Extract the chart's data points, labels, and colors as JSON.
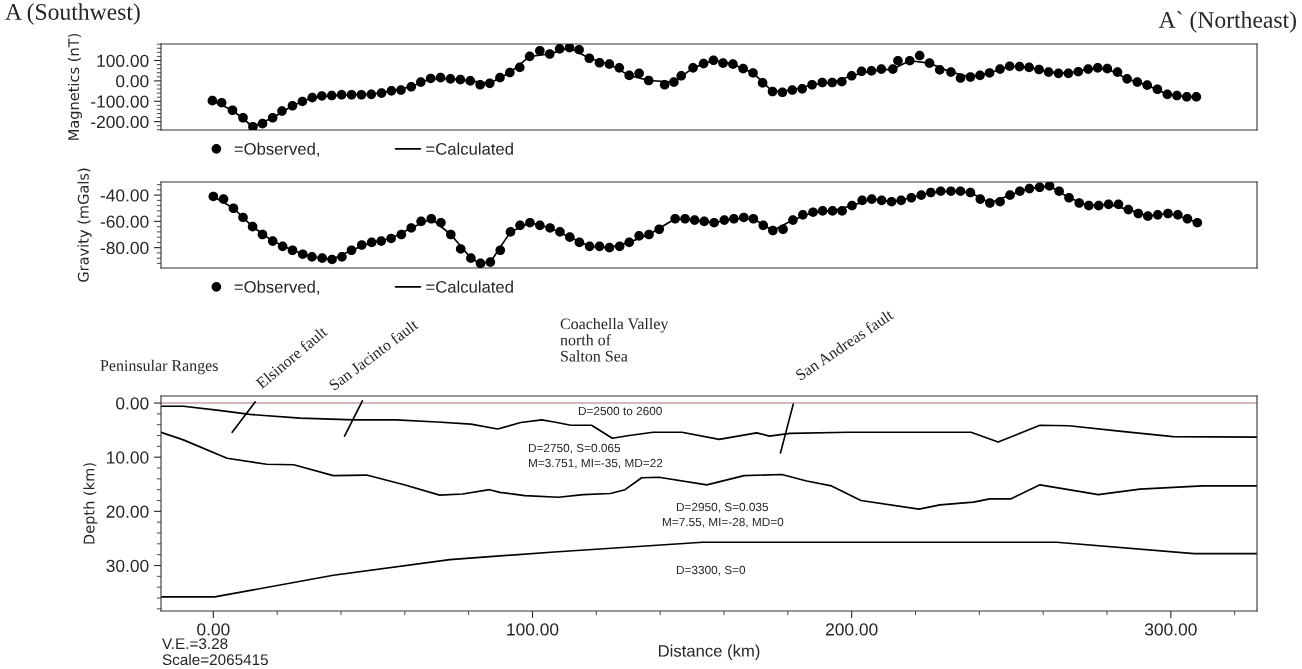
{
  "chart_data": [
    {
      "type": "scatter",
      "ylabel": "Magnetics (nT)",
      "xlim": [
        -16.4,
        327
      ],
      "ylim": [
        -241,
        181
      ],
      "yticks": [
        {
          "value": -200,
          "label": "-200.00"
        },
        {
          "value": -100,
          "label": "-100.00"
        },
        {
          "value": 0,
          "label": "0.00"
        },
        {
          "value": 100,
          "label": "100.00"
        }
      ],
      "tick_labels": "y",
      "legend": "bottom",
      "annotations": [
        "A (Southwest)",
        "A` (Northeast)"
      ],
      "series": [
        {
          "name": "=Observed,",
          "type": "scatter",
          "marker": "circle",
          "color": "#000000",
          "x": [
            -0.3,
            2.6,
            6.0,
            9.3,
            12.4,
            15.4,
            18.6,
            21.5,
            24.8,
            27.9,
            31.0,
            34.0,
            37.1,
            40.2,
            43.3,
            46.4,
            49.5,
            52.7,
            55.8,
            58.8,
            62.0,
            65.0,
            68.1,
            71.2,
            74.3,
            77.4,
            80.5,
            83.6,
            86.6,
            89.8,
            92.9,
            96.0,
            99.1,
            102.3,
            105.4,
            108.5,
            111.6,
            114.6,
            117.8,
            121.0,
            124.1,
            127.2,
            130.3,
            133.4,
            136.4,
            141.4,
            144.3,
            146.6,
            150.3,
            153.6,
            156.7,
            159.7,
            162.8,
            166.0,
            169.1,
            172.1,
            175.2,
            178.3,
            181.4,
            184.5,
            187.6,
            190.8,
            193.9,
            196.9,
            200.0,
            203.1,
            206.2,
            209.3,
            212.9,
            214.5,
            218.2,
            221.3,
            224.4,
            227.6,
            231.1,
            234.1,
            237.2,
            240.2,
            243.2,
            246.5,
            249.5,
            252.6,
            255.6,
            258.7,
            261.7,
            264.8,
            267.9,
            271.0,
            274.1,
            277.1,
            280.1,
            283.3,
            286.3,
            289.5,
            292.6,
            295.8,
            298.9,
            301.9,
            305.0,
            308.0
          ],
          "values": [
            -97,
            -107,
            -144,
            -181,
            -225,
            -210,
            -181,
            -148,
            -122,
            -101,
            -82,
            -74,
            -72,
            -68,
            -68,
            -68,
            -66,
            -60,
            -49,
            -45,
            -29,
            -6,
            12,
            16,
            10,
            6,
            0,
            -19,
            -12,
            16,
            41,
            66,
            120,
            148,
            132,
            157,
            163,
            153,
            111,
            89,
            82,
            64,
            27,
            37,
            2,
            -19,
            -6,
            25,
            64,
            85,
            101,
            87,
            82,
            60,
            39,
            -10,
            -52,
            -56,
            -45,
            -39,
            -19,
            -8,
            -8,
            -4,
            25,
            47,
            49,
            58,
            58,
            99,
            99,
            124,
            87,
            54,
            43,
            14,
            19,
            27,
            39,
            58,
            72,
            70,
            66,
            56,
            43,
            37,
            37,
            45,
            58,
            64,
            60,
            43,
            10,
            -6,
            -21,
            -41,
            -66,
            -72,
            -78,
            -78
          ]
        },
        {
          "name": "=Calculated",
          "type": "line",
          "marker": "none",
          "color": "#000000",
          "x": [
            -0.3,
            6.0,
            12.4,
            18.6,
            24.8,
            31.0,
            37.1,
            43.3,
            49.5,
            55.8,
            62.0,
            68.1,
            74.3,
            80.5,
            86.6,
            92.9,
            99.1,
            105.4,
            111.6,
            117.8,
            124.1,
            130.3,
            136.4,
            144.3,
            150.3,
            156.7,
            162.8,
            169.1,
            175.2,
            181.4,
            187.6,
            193.9,
            200.0,
            206.2,
            212.9,
            218.2,
            224.4,
            231.1,
            237.2,
            243.2,
            249.5,
            255.6,
            261.7,
            267.9,
            274.1,
            280.1,
            286.3,
            292.6,
            298.9,
            305.0,
            308.0
          ],
          "values": [
            -97,
            -144,
            -225,
            -181,
            -122,
            -82,
            -72,
            -68,
            -66,
            -49,
            -29,
            12,
            10,
            0,
            -12,
            41,
            120,
            132,
            163,
            111,
            82,
            27,
            2,
            -6,
            64,
            101,
            82,
            39,
            -52,
            -45,
            -19,
            -8,
            25,
            49,
            58,
            99,
            87,
            43,
            19,
            39,
            72,
            66,
            43,
            37,
            58,
            60,
            10,
            -21,
            -66,
            -78,
            -78
          ]
        }
      ]
    },
    {
      "type": "scatter",
      "ylabel": "Gravity (mGals)",
      "xlim": [
        -16.4,
        327
      ],
      "ylim": [
        -95.5,
        -30
      ],
      "yticks": [
        {
          "value": -80,
          "label": "-80.00"
        },
        {
          "value": -60,
          "label": "-60.00"
        },
        {
          "value": -40,
          "label": "-40.00"
        }
      ],
      "tick_labels": "y",
      "legend": "bottom",
      "series": [
        {
          "name": "=Observed,",
          "type": "scatter",
          "marker": "circle",
          "color": "#000000",
          "x": [
            0.0,
            3.2,
            6.3,
            9.3,
            12.3,
            15.4,
            18.6,
            21.7,
            24.8,
            28.0,
            30.9,
            34.1,
            37.2,
            40.3,
            43.3,
            46.5,
            49.6,
            52.6,
            55.7,
            58.9,
            62.0,
            65.1,
            68.3,
            71.3,
            74.4,
            77.5,
            80.7,
            83.7,
            86.8,
            89.9,
            93.1,
            96.1,
            99.2,
            102.3,
            105.5,
            108.6,
            111.7,
            114.7,
            117.9,
            121.0,
            124.1,
            127.3,
            130.3,
            133.4,
            136.5,
            139.7,
            144.7,
            147.8,
            150.8,
            153.8,
            156.9,
            160.1,
            163.1,
            166.2,
            169.2,
            172.3,
            175.3,
            178.5,
            181.6,
            184.7,
            187.9,
            190.9,
            194.0,
            197.0,
            200.1,
            203.3,
            206.3,
            209.4,
            212.5,
            215.5,
            218.7,
            221.8,
            224.8,
            227.9,
            231.1,
            234.1,
            237.2,
            240.3,
            243.3,
            246.5,
            249.6,
            252.7,
            255.7,
            258.9,
            262.0,
            265.0,
            268.1,
            271.3,
            274.3,
            277.4,
            280.5,
            283.6,
            286.7,
            289.8,
            292.8,
            295.9,
            299.1,
            302.2,
            305.2,
            308.3
          ],
          "values": [
            -41,
            -43,
            -50,
            -57,
            -64,
            -70,
            -75,
            -79,
            -82,
            -85,
            -87,
            -88,
            -89,
            -87,
            -82,
            -78,
            -76,
            -75,
            -73,
            -70,
            -65,
            -60,
            -58,
            -61,
            -70,
            -81,
            -88,
            -92,
            -91,
            -82,
            -68,
            -63,
            -61,
            -63,
            -65,
            -68,
            -72,
            -76,
            -79,
            -79,
            -80,
            -79,
            -76,
            -71,
            -70,
            -66,
            -58,
            -58,
            -59,
            -60,
            -61,
            -59,
            -58,
            -57,
            -58,
            -63,
            -67,
            -66,
            -59,
            -55,
            -53,
            -52,
            -52,
            -52,
            -48,
            -44,
            -43,
            -44,
            -45,
            -44,
            -42,
            -40,
            -38,
            -37,
            -37,
            -37,
            -38,
            -43,
            -46,
            -45,
            -40,
            -37,
            -35,
            -34,
            -33,
            -37,
            -42,
            -46,
            -48,
            -48,
            -47,
            -47,
            -51,
            -54,
            -56,
            -55,
            -54,
            -55,
            -58,
            -61
          ]
        },
        {
          "name": "=Calculated",
          "type": "line",
          "marker": "none",
          "color": "#000000",
          "x": [
            0.0,
            6.3,
            12.3,
            18.6,
            24.8,
            30.9,
            37.2,
            43.3,
            49.6,
            55.7,
            62.0,
            68.3,
            74.4,
            80.7,
            83.7,
            86.8,
            93.1,
            99.2,
            105.5,
            111.7,
            117.9,
            124.1,
            130.3,
            136.5,
            144.7,
            150.8,
            156.9,
            163.1,
            169.2,
            175.3,
            181.6,
            187.9,
            194.0,
            200.1,
            206.3,
            212.5,
            218.7,
            224.8,
            231.1,
            237.2,
            243.3,
            249.6,
            255.7,
            262.0,
            268.1,
            274.3,
            280.5,
            286.7,
            292.8,
            299.1,
            305.2,
            308.3
          ],
          "values": [
            -41,
            -50,
            -64,
            -75,
            -82,
            -87,
            -89,
            -82,
            -76,
            -73,
            -65,
            -58,
            -70,
            -88,
            -92,
            -91,
            -68,
            -61,
            -65,
            -72,
            -79,
            -80,
            -76,
            -70,
            -58,
            -59,
            -61,
            -58,
            -58,
            -67,
            -59,
            -53,
            -52,
            -48,
            -43,
            -45,
            -42,
            -38,
            -37,
            -38,
            -46,
            -40,
            -35,
            -33,
            -42,
            -48,
            -47,
            -51,
            -56,
            -54,
            -58,
            -61
          ]
        }
      ]
    },
    {
      "type": "line",
      "xlabel": "Distance (km)",
      "ylabel": "Depth (km)",
      "xlim": [
        -16.4,
        327
      ],
      "xticks": [
        {
          "value": 0,
          "label": "0.00"
        },
        {
          "value": 100,
          "label": "100.00"
        },
        {
          "value": 200,
          "label": "200.00"
        },
        {
          "value": 300,
          "label": "300.00"
        }
      ],
      "ylim": [
        38.4,
        -1.3
      ],
      "yticks": [
        {
          "value": 0,
          "label": "0.00"
        },
        {
          "value": 10,
          "label": "10.00"
        },
        {
          "value": 20,
          "label": "20.00"
        },
        {
          "value": 30,
          "label": "30.00"
        }
      ],
      "ref_lines": [
        {
          "axis": "y",
          "value": 0,
          "color": "#c8a0a0"
        }
      ],
      "annotations": [
        "Peninsular Ranges",
        "Elsinore fault",
        "San Jacinto fault",
        "Coachella Valley\nnorth of\nSalton Sea",
        "San Andreas fault",
        "D=2500 to 2600",
        "D=2750, S=0.065",
        "M=3.751, MI=-35, MD=22",
        "D=2950, S=0.035",
        "M=7.55, MI=-28, MD=0",
        "D=3300, S=0",
        "V.E.=3.28",
        "Scale=2065415"
      ],
      "series": [
        {
          "color": "#000000",
          "x": [
            -16.4,
            -9.4,
            1.1,
            11.5,
            27.2,
            44.1,
            57.2,
            70.2,
            80.7,
            89.1,
            96.3,
            102.9,
            106.8,
            112.0,
            118.5,
            125.0,
            130.3,
            137.8,
            146.8,
            158.5,
            170.2,
            174.2,
            180.7,
            199.0,
            225.1,
            237.4,
            245.9,
            259.0,
            268.1,
            283.8,
            300.7,
            327.0
          ],
          "values": [
            0.6,
            0.6,
            1.3,
            2.1,
            2.8,
            3.1,
            3.1,
            3.5,
            3.9,
            4.8,
            3.6,
            3.1,
            3.5,
            4.1,
            4.1,
            6.5,
            6.0,
            5.4,
            5.4,
            6.7,
            5.5,
            6.1,
            5.6,
            5.4,
            5.4,
            5.4,
            7.2,
            4.1,
            4.2,
            5.2,
            6.2,
            6.3
          ]
        },
        {
          "color": "#000000",
          "x": [
            -16.4,
            -9.4,
            4.3,
            16.7,
            25.2,
            37.6,
            48.0,
            59.8,
            70.9,
            78.1,
            86.5,
            89.8,
            97.6,
            108.1,
            115.9,
            124.4,
            129.0,
            134.2,
            139.6,
            154.6,
            166.3,
            178.1,
            185.9,
            193.7,
            202.9,
            221.1,
            227.7,
            238.1,
            243.3,
            249.8,
            259.0,
            277.3,
            290.3,
            309.9,
            327.0
          ],
          "values": [
            5.4,
            6.8,
            10.2,
            11.3,
            11.4,
            13.4,
            13.3,
            15.1,
            17.0,
            16.8,
            16.0,
            16.5,
            17.1,
            17.4,
            16.9,
            16.7,
            16.0,
            13.8,
            13.7,
            15.1,
            13.4,
            13.2,
            14.4,
            15.3,
            18.0,
            19.6,
            18.8,
            18.3,
            17.7,
            17.7,
            15.1,
            16.9,
            15.9,
            15.3,
            15.3
          ]
        },
        {
          "color": "#000000",
          "x": [
            -16.4,
            0.4,
            37.6,
            74.1,
            106.8,
            137.8,
            153.3,
            264.2,
            307.3,
            327.0
          ],
          "values": [
            35.8,
            35.8,
            31.8,
            28.9,
            27.5,
            26.3,
            25.7,
            25.7,
            27.8,
            27.8
          ]
        },
        {
          "color": "#000000",
          "x": [
            5.9,
            13.1
          ],
          "values": [
            5.4,
            -0.2
          ]
        },
        {
          "color": "#000000",
          "x": [
            41.1,
            46.7
          ],
          "values": [
            6.1,
            -0.4
          ]
        },
        {
          "color": "#000000",
          "x": [
            177.7,
            181.7
          ],
          "values": [
            9.2,
            0.2
          ]
        }
      ]
    }
  ]
}
